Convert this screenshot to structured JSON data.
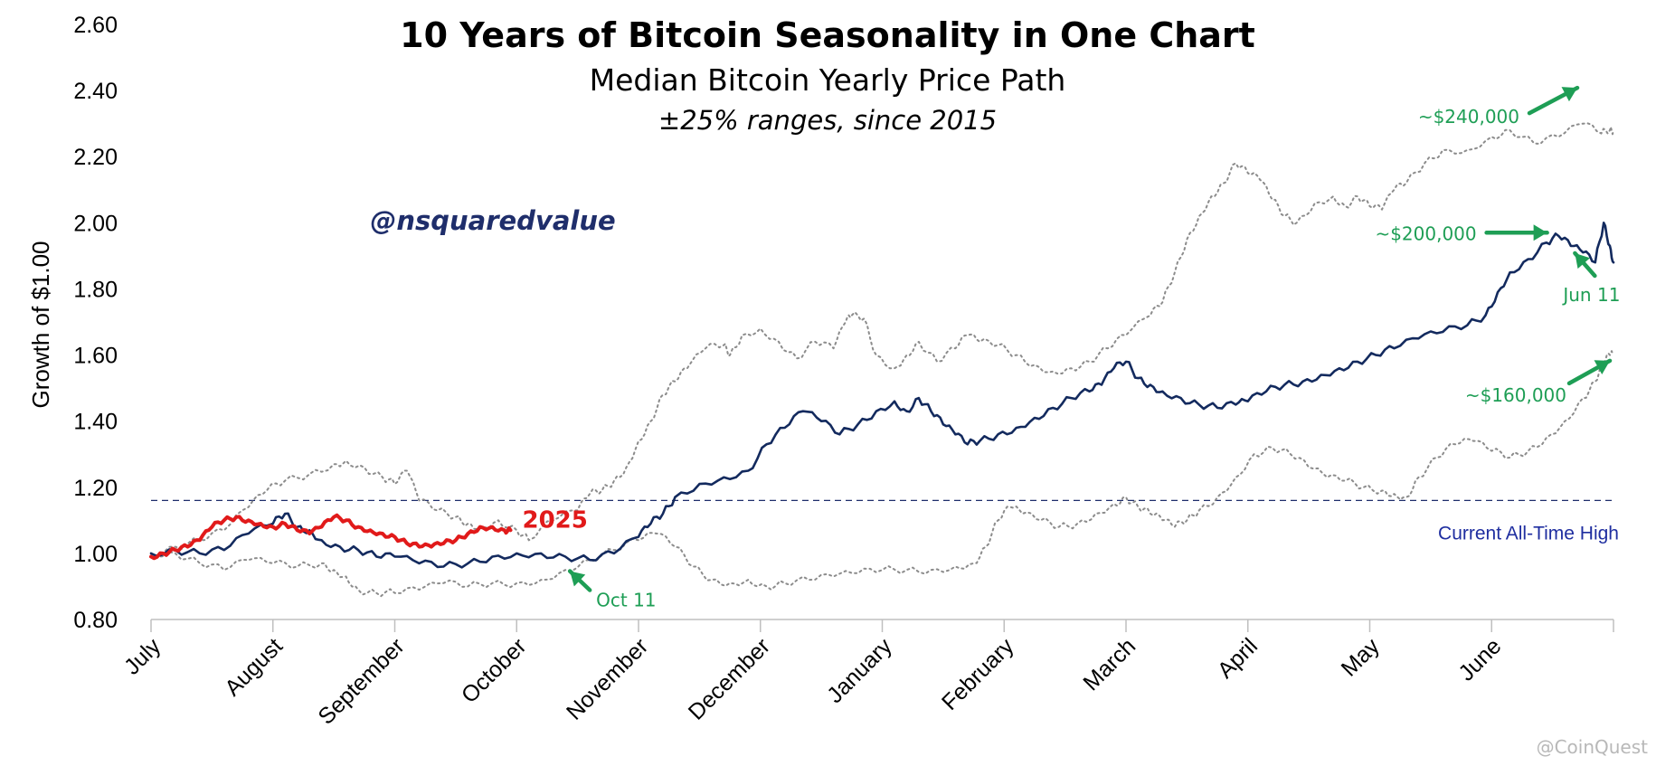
{
  "colors": {
    "median": "#132a5e",
    "range": "#8c8c8c",
    "current_2025": "#e11a1a",
    "ath_line": "#1f2e6b",
    "annotation": "#1e9e55"
  },
  "watermark": "@CoinQuest",
  "chart_data": {
    "type": "line",
    "title": "10 Years of Bitcoin Seasonality in One Chart",
    "subtitle": "Median Bitcoin Yearly Price Path",
    "subtitle2": "±25% ranges, since 2015",
    "handle": "@nsquaredvalue",
    "ylabel": "Growth of $1.00",
    "xlabel": "",
    "ylim": [
      0.8,
      2.6
    ],
    "yticks": [
      "0.80",
      "1.00",
      "1.20",
      "1.40",
      "1.60",
      "1.80",
      "2.00",
      "2.20",
      "2.40",
      "2.60"
    ],
    "xlim": [
      0,
      12
    ],
    "categories": [
      "July",
      "August",
      "September",
      "October",
      "November",
      "December",
      "January",
      "February",
      "March",
      "April",
      "May",
      "June"
    ],
    "category_positions": [
      0,
      1,
      2,
      3,
      4,
      5,
      6,
      7,
      8,
      9,
      10,
      11,
      12
    ],
    "grid": false,
    "series": [
      {
        "role": "upper",
        "style": "dotted",
        "points": [
          [
            0,
            1.0
          ],
          [
            0.2,
            1.02
          ],
          [
            0.4,
            1.04
          ],
          [
            0.6,
            1.07
          ],
          [
            0.8,
            1.14
          ],
          [
            0.95,
            1.19
          ],
          [
            1.1,
            1.22
          ],
          [
            1.3,
            1.24
          ],
          [
            1.5,
            1.27
          ],
          [
            1.6,
            1.28
          ],
          [
            1.75,
            1.26
          ],
          [
            1.9,
            1.23
          ],
          [
            2.0,
            1.21
          ],
          [
            2.1,
            1.25
          ],
          [
            2.2,
            1.16
          ],
          [
            2.35,
            1.13
          ],
          [
            2.5,
            1.11
          ],
          [
            2.6,
            1.09
          ],
          [
            2.7,
            1.08
          ],
          [
            2.85,
            1.1
          ],
          [
            3.0,
            1.07
          ],
          [
            3.1,
            1.04
          ],
          [
            3.3,
            1.1
          ],
          [
            3.5,
            1.13
          ],
          [
            3.6,
            1.18
          ],
          [
            3.7,
            1.19
          ],
          [
            3.8,
            1.22
          ],
          [
            3.9,
            1.26
          ],
          [
            4.0,
            1.34
          ],
          [
            4.1,
            1.4
          ],
          [
            4.2,
            1.48
          ],
          [
            4.3,
            1.52
          ],
          [
            4.4,
            1.56
          ],
          [
            4.55,
            1.62
          ],
          [
            4.7,
            1.63
          ],
          [
            4.75,
            1.6
          ],
          [
            4.85,
            1.66
          ],
          [
            5.0,
            1.68
          ],
          [
            5.15,
            1.64
          ],
          [
            5.3,
            1.59
          ],
          [
            5.45,
            1.64
          ],
          [
            5.6,
            1.62
          ],
          [
            5.7,
            1.7
          ],
          [
            5.75,
            1.72
          ],
          [
            5.85,
            1.71
          ],
          [
            5.95,
            1.6
          ],
          [
            6.1,
            1.56
          ],
          [
            6.2,
            1.6
          ],
          [
            6.3,
            1.64
          ],
          [
            6.45,
            1.58
          ],
          [
            6.6,
            1.62
          ],
          [
            6.7,
            1.66
          ],
          [
            6.8,
            1.64
          ],
          [
            6.95,
            1.63
          ],
          [
            7.1,
            1.6
          ],
          [
            7.25,
            1.57
          ],
          [
            7.4,
            1.55
          ],
          [
            7.55,
            1.56
          ],
          [
            7.7,
            1.58
          ],
          [
            7.85,
            1.62
          ],
          [
            8.0,
            1.66
          ],
          [
            8.2,
            1.72
          ],
          [
            8.3,
            1.76
          ],
          [
            8.4,
            1.85
          ],
          [
            8.5,
            1.95
          ],
          [
            8.6,
            2.02
          ],
          [
            8.7,
            2.08
          ],
          [
            8.8,
            2.12
          ],
          [
            8.9,
            2.18
          ],
          [
            9.0,
            2.15
          ],
          [
            9.1,
            2.13
          ],
          [
            9.2,
            2.07
          ],
          [
            9.3,
            2.02
          ],
          [
            9.4,
            2.0
          ],
          [
            9.55,
            2.06
          ],
          [
            9.7,
            2.08
          ],
          [
            9.8,
            2.05
          ],
          [
            9.9,
            2.08
          ],
          [
            10.0,
            2.05
          ],
          [
            10.1,
            2.04
          ],
          [
            10.2,
            2.1
          ],
          [
            10.3,
            2.12
          ],
          [
            10.45,
            2.18
          ],
          [
            10.6,
            2.22
          ],
          [
            10.8,
            2.22
          ],
          [
            11.0,
            2.26
          ],
          [
            11.15,
            2.28
          ],
          [
            11.35,
            2.24
          ],
          [
            11.55,
            2.26
          ],
          [
            11.75,
            2.3
          ],
          [
            11.9,
            2.27
          ],
          [
            11.97,
            2.28
          ],
          [
            12.0,
            2.28
          ]
        ]
      },
      {
        "role": "median",
        "style": "solid",
        "points": [
          [
            0,
            1.0
          ],
          [
            0.2,
            1.01
          ],
          [
            0.4,
            1.0
          ],
          [
            0.6,
            1.01
          ],
          [
            0.8,
            1.06
          ],
          [
            1.0,
            1.09
          ],
          [
            1.1,
            1.12
          ],
          [
            1.2,
            1.08
          ],
          [
            1.3,
            1.07
          ],
          [
            1.4,
            1.04
          ],
          [
            1.55,
            1.02
          ],
          [
            1.7,
            1.01
          ],
          [
            1.85,
            0.99
          ],
          [
            2.0,
            0.99
          ],
          [
            2.2,
            0.97
          ],
          [
            2.4,
            0.96
          ],
          [
            2.6,
            0.97
          ],
          [
            2.8,
            0.99
          ],
          [
            3.0,
            1.0
          ],
          [
            3.2,
            1.0
          ],
          [
            3.4,
            0.99
          ],
          [
            3.6,
            0.98
          ],
          [
            3.8,
            1.0
          ],
          [
            4.0,
            1.05
          ],
          [
            4.1,
            1.09
          ],
          [
            4.2,
            1.12
          ],
          [
            4.3,
            1.17
          ],
          [
            4.5,
            1.21
          ],
          [
            4.7,
            1.23
          ],
          [
            4.9,
            1.25
          ],
          [
            5.05,
            1.33
          ],
          [
            5.2,
            1.38
          ],
          [
            5.35,
            1.43
          ],
          [
            5.5,
            1.4
          ],
          [
            5.65,
            1.36
          ],
          [
            5.8,
            1.39
          ],
          [
            5.95,
            1.43
          ],
          [
            6.1,
            1.46
          ],
          [
            6.2,
            1.43
          ],
          [
            6.3,
            1.47
          ],
          [
            6.4,
            1.43
          ],
          [
            6.5,
            1.39
          ],
          [
            6.6,
            1.36
          ],
          [
            6.7,
            1.33
          ],
          [
            6.8,
            1.34
          ],
          [
            6.95,
            1.36
          ],
          [
            7.1,
            1.38
          ],
          [
            7.25,
            1.41
          ],
          [
            7.4,
            1.44
          ],
          [
            7.55,
            1.47
          ],
          [
            7.7,
            1.49
          ],
          [
            7.8,
            1.51
          ],
          [
            7.9,
            1.56
          ],
          [
            8.0,
            1.58
          ],
          [
            8.1,
            1.53
          ],
          [
            8.2,
            1.51
          ],
          [
            8.3,
            1.49
          ],
          [
            8.45,
            1.47
          ],
          [
            8.6,
            1.45
          ],
          [
            8.75,
            1.44
          ],
          [
            8.9,
            1.45
          ],
          [
            9.0,
            1.46
          ],
          [
            9.15,
            1.49
          ],
          [
            9.3,
            1.51
          ],
          [
            9.45,
            1.52
          ],
          [
            9.6,
            1.54
          ],
          [
            9.75,
            1.56
          ],
          [
            9.9,
            1.58
          ],
          [
            10.05,
            1.6
          ],
          [
            10.2,
            1.62
          ],
          [
            10.4,
            1.65
          ],
          [
            10.6,
            1.67
          ],
          [
            10.8,
            1.69
          ],
          [
            10.95,
            1.72
          ],
          [
            11.05,
            1.79
          ],
          [
            11.15,
            1.85
          ],
          [
            11.3,
            1.89
          ],
          [
            11.45,
            1.94
          ],
          [
            11.55,
            1.96
          ],
          [
            11.65,
            1.93
          ],
          [
            11.75,
            1.91
          ],
          [
            11.85,
            1.88
          ],
          [
            11.92,
            2.0
          ],
          [
            11.97,
            1.93
          ],
          [
            12.0,
            1.88
          ]
        ]
      },
      {
        "role": "lower",
        "style": "dotted",
        "points": [
          [
            0,
            1.0
          ],
          [
            0.2,
            1.0
          ],
          [
            0.4,
            0.97
          ],
          [
            0.6,
            0.95
          ],
          [
            0.8,
            0.98
          ],
          [
            1.0,
            0.97
          ],
          [
            1.2,
            0.96
          ],
          [
            1.4,
            0.97
          ],
          [
            1.5,
            0.95
          ],
          [
            1.6,
            0.93
          ],
          [
            1.7,
            0.89
          ],
          [
            1.85,
            0.88
          ],
          [
            2.0,
            0.88
          ],
          [
            2.2,
            0.89
          ],
          [
            2.4,
            0.91
          ],
          [
            2.6,
            0.9
          ],
          [
            2.8,
            0.91
          ],
          [
            3.0,
            0.91
          ],
          [
            3.2,
            0.92
          ],
          [
            3.4,
            0.95
          ],
          [
            3.6,
            0.98
          ],
          [
            3.8,
            1.01
          ],
          [
            4.0,
            1.04
          ],
          [
            4.15,
            1.06
          ],
          [
            4.3,
            1.02
          ],
          [
            4.45,
            0.96
          ],
          [
            4.6,
            0.92
          ],
          [
            4.75,
            0.91
          ],
          [
            4.9,
            0.92
          ],
          [
            5.05,
            0.9
          ],
          [
            5.2,
            0.91
          ],
          [
            5.4,
            0.92
          ],
          [
            5.6,
            0.93
          ],
          [
            5.8,
            0.94
          ],
          [
            6.0,
            0.95
          ],
          [
            6.2,
            0.95
          ],
          [
            6.4,
            0.95
          ],
          [
            6.6,
            0.96
          ],
          [
            6.75,
            0.97
          ],
          [
            6.85,
            1.02
          ],
          [
            6.95,
            1.1
          ],
          [
            7.05,
            1.14
          ],
          [
            7.15,
            1.12
          ],
          [
            7.3,
            1.1
          ],
          [
            7.45,
            1.08
          ],
          [
            7.6,
            1.09
          ],
          [
            7.75,
            1.12
          ],
          [
            7.9,
            1.15
          ],
          [
            8.0,
            1.17
          ],
          [
            8.1,
            1.14
          ],
          [
            8.2,
            1.12
          ],
          [
            8.3,
            1.1
          ],
          [
            8.4,
            1.08
          ],
          [
            8.5,
            1.1
          ],
          [
            8.6,
            1.13
          ],
          [
            8.75,
            1.17
          ],
          [
            8.9,
            1.23
          ],
          [
            9.05,
            1.3
          ],
          [
            9.2,
            1.32
          ],
          [
            9.35,
            1.3
          ],
          [
            9.5,
            1.26
          ],
          [
            9.65,
            1.23
          ],
          [
            9.8,
            1.22
          ],
          [
            9.95,
            1.2
          ],
          [
            10.1,
            1.19
          ],
          [
            10.2,
            1.18
          ],
          [
            10.3,
            1.17
          ],
          [
            10.4,
            1.23
          ],
          [
            10.55,
            1.29
          ],
          [
            10.7,
            1.33
          ],
          [
            10.85,
            1.34
          ],
          [
            11.0,
            1.31
          ],
          [
            11.15,
            1.29
          ],
          [
            11.3,
            1.31
          ],
          [
            11.45,
            1.35
          ],
          [
            11.6,
            1.4
          ],
          [
            11.75,
            1.47
          ],
          [
            11.85,
            1.52
          ],
          [
            11.92,
            1.58
          ],
          [
            11.97,
            1.6
          ],
          [
            12.0,
            1.6
          ]
        ]
      },
      {
        "name": "2025",
        "role": "current",
        "style": "solid",
        "points": [
          [
            0,
            0.99
          ],
          [
            0.1,
            1.0
          ],
          [
            0.2,
            1.01
          ],
          [
            0.3,
            1.02
          ],
          [
            0.4,
            1.04
          ],
          [
            0.5,
            1.08
          ],
          [
            0.6,
            1.1
          ],
          [
            0.7,
            1.11
          ],
          [
            0.8,
            1.1
          ],
          [
            0.9,
            1.09
          ],
          [
            1.0,
            1.08
          ],
          [
            1.1,
            1.09
          ],
          [
            1.2,
            1.07
          ],
          [
            1.3,
            1.06
          ],
          [
            1.4,
            1.08
          ],
          [
            1.5,
            1.11
          ],
          [
            1.6,
            1.1
          ],
          [
            1.7,
            1.08
          ],
          [
            1.8,
            1.07
          ],
          [
            1.9,
            1.06
          ],
          [
            2.0,
            1.05
          ],
          [
            2.1,
            1.03
          ],
          [
            2.2,
            1.02
          ],
          [
            2.3,
            1.02
          ],
          [
            2.4,
            1.03
          ],
          [
            2.5,
            1.04
          ],
          [
            2.6,
            1.06
          ],
          [
            2.7,
            1.08
          ],
          [
            2.8,
            1.08
          ],
          [
            2.9,
            1.07
          ],
          [
            2.95,
            1.07
          ]
        ]
      }
    ],
    "reference_line": {
      "value": 1.16,
      "label": "Current All-Time High"
    },
    "annotations": [
      {
        "label": "Oct 11",
        "x": 3.4,
        "y": 0.99
      },
      {
        "label": "Jun 11",
        "x": 11.55,
        "y": 1.96
      },
      {
        "label": "~$240,000",
        "x": 12.0,
        "y": 2.4
      },
      {
        "label": "~$200,000",
        "x": 11.5,
        "y": 1.97
      },
      {
        "label": "~$160,000",
        "x": 12.0,
        "y": 1.58
      },
      {
        "label": "2025",
        "x": 2.95,
        "y": 1.1
      }
    ]
  }
}
